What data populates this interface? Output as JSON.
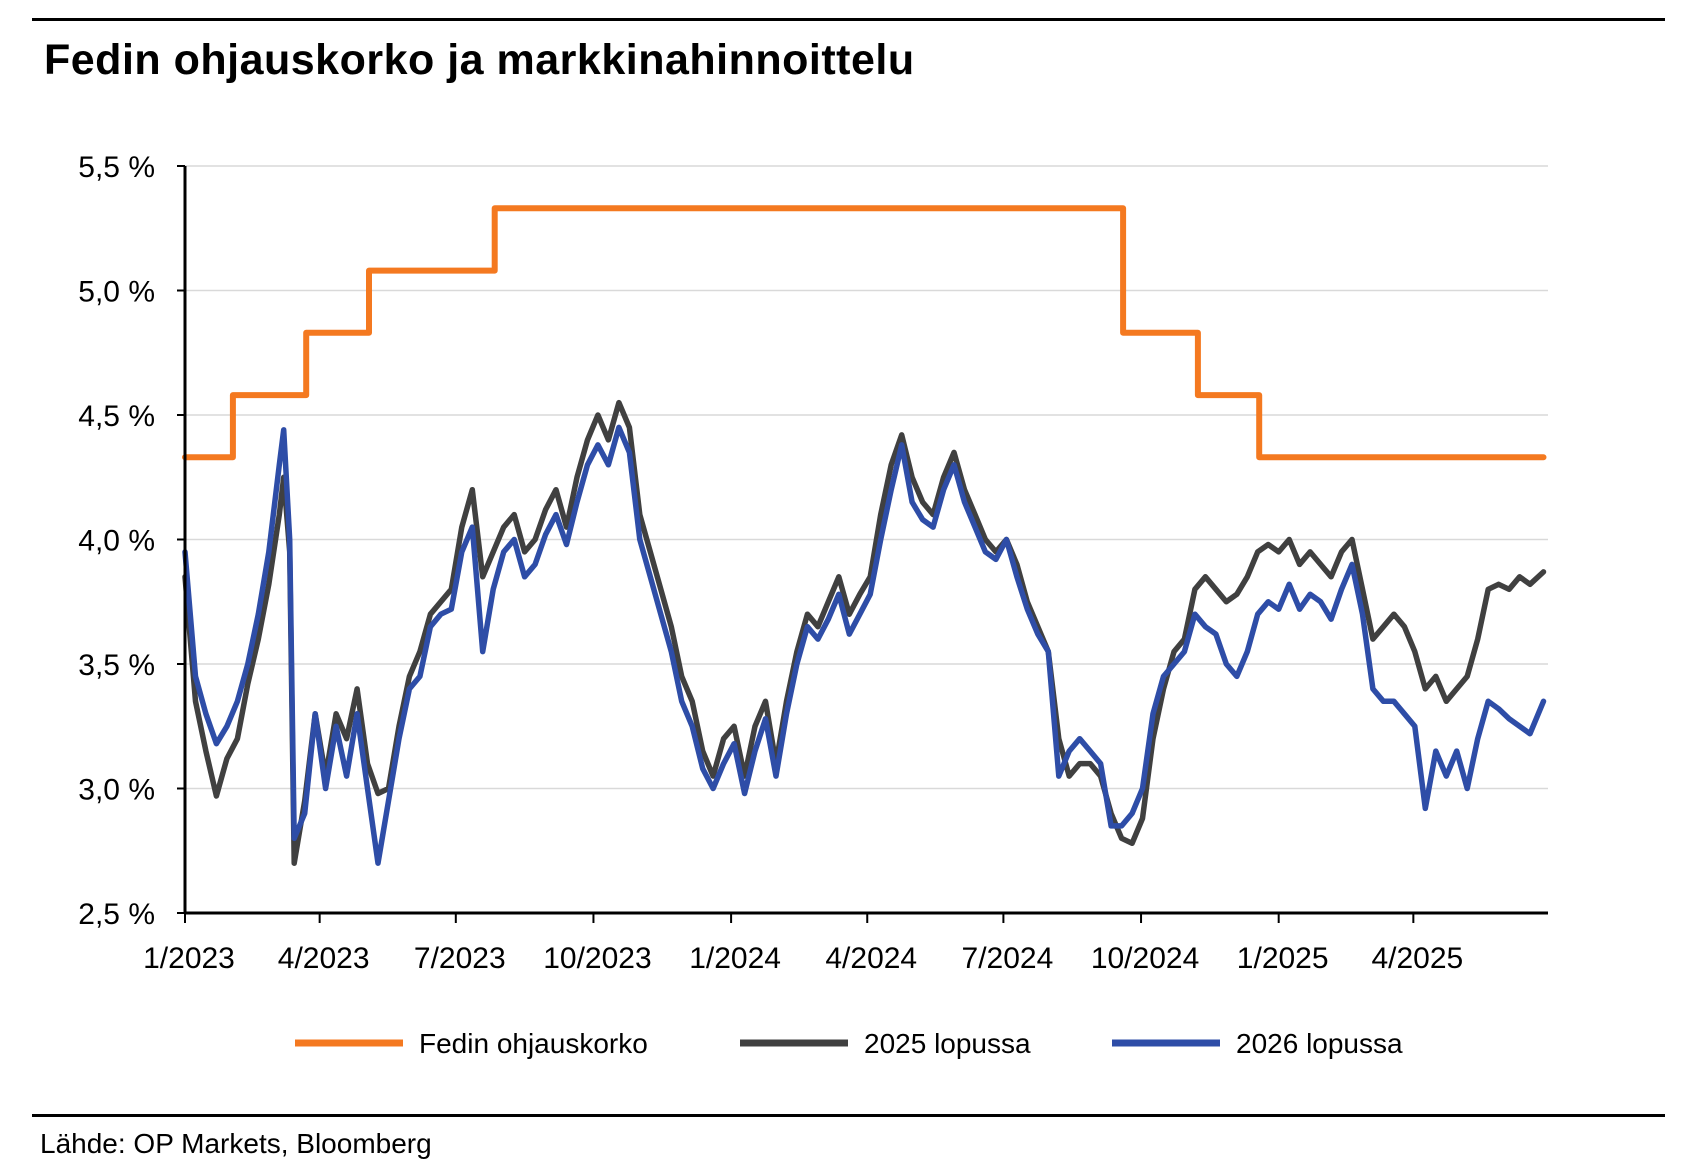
{
  "title": "Fedin ohjauskorko ja markkinahinnoittelu",
  "source": "Lähde: OP Markets, Bloomberg",
  "colors": {
    "fed": "#F47920",
    "y2025": "#404040",
    "y2026": "#2E4DA7",
    "grid": "#D9D9D9",
    "axis": "#000000"
  },
  "chart_data": {
    "type": "line",
    "title": "Fedin ohjauskorko ja markkinahinnoittelu",
    "xlabel": "",
    "ylabel": "",
    "x_unit": "date",
    "xlim": [
      "2023-01-01",
      "2025-06-30"
    ],
    "ylim": [
      2.5,
      5.5
    ],
    "y_ticks": [
      2.5,
      3.0,
      3.5,
      4.0,
      4.5,
      5.0,
      5.5
    ],
    "y_tick_labels": [
      "2,5 %",
      "3,0 %",
      "3,5 %",
      "4,0 %",
      "4,5 %",
      "5,0 %",
      "5,5 %"
    ],
    "x_ticks": [
      "2023-01-01",
      "2023-04-01",
      "2023-07-01",
      "2023-10-01",
      "2024-01-01",
      "2024-04-01",
      "2024-07-01",
      "2024-10-01",
      "2025-01-01",
      "2025-04-01"
    ],
    "x_tick_labels": [
      "1/2023",
      "4/2023",
      "7/2023",
      "10/2023",
      "1/2024",
      "4/2024",
      "7/2024",
      "10/2024",
      "1/2025",
      "4/2025"
    ],
    "grid": true,
    "legend_position": "bottom",
    "series": [
      {
        "name": "Fedin ohjauskorko",
        "style": "step",
        "points": [
          [
            "2023-01-01",
            4.33
          ],
          [
            "2023-02-02",
            4.58
          ],
          [
            "2023-03-23",
            4.83
          ],
          [
            "2023-05-04",
            5.08
          ],
          [
            "2023-07-27",
            5.33
          ],
          [
            "2024-09-19",
            4.83
          ],
          [
            "2024-11-08",
            4.58
          ],
          [
            "2024-12-19",
            4.33
          ],
          [
            "2025-06-27",
            4.33
          ]
        ]
      },
      {
        "name": "2025 lopussa",
        "style": "line",
        "points": [
          [
            "2023-01-01",
            3.85
          ],
          [
            "2023-01-08",
            3.35
          ],
          [
            "2023-01-15",
            3.15
          ],
          [
            "2023-01-22",
            2.97
          ],
          [
            "2023-01-29",
            3.12
          ],
          [
            "2023-02-05",
            3.2
          ],
          [
            "2023-02-12",
            3.42
          ],
          [
            "2023-02-19",
            3.6
          ],
          [
            "2023-02-26",
            3.82
          ],
          [
            "2023-03-05",
            4.1
          ],
          [
            "2023-03-08",
            4.25
          ],
          [
            "2023-03-12",
            3.95
          ],
          [
            "2023-03-15",
            2.7
          ],
          [
            "2023-03-22",
            2.95
          ],
          [
            "2023-03-29",
            3.3
          ],
          [
            "2023-04-05",
            3.05
          ],
          [
            "2023-04-12",
            3.3
          ],
          [
            "2023-04-19",
            3.2
          ],
          [
            "2023-04-26",
            3.4
          ],
          [
            "2023-05-03",
            3.1
          ],
          [
            "2023-05-10",
            2.98
          ],
          [
            "2023-05-17",
            3.0
          ],
          [
            "2023-05-24",
            3.25
          ],
          [
            "2023-05-31",
            3.45
          ],
          [
            "2023-06-07",
            3.55
          ],
          [
            "2023-06-14",
            3.7
          ],
          [
            "2023-06-21",
            3.75
          ],
          [
            "2023-06-28",
            3.8
          ],
          [
            "2023-07-05",
            4.05
          ],
          [
            "2023-07-12",
            4.2
          ],
          [
            "2023-07-19",
            3.85
          ],
          [
            "2023-07-26",
            3.95
          ],
          [
            "2023-08-02",
            4.05
          ],
          [
            "2023-08-09",
            4.1
          ],
          [
            "2023-08-16",
            3.95
          ],
          [
            "2023-08-23",
            4.0
          ],
          [
            "2023-08-30",
            4.12
          ],
          [
            "2023-09-06",
            4.2
          ],
          [
            "2023-09-13",
            4.05
          ],
          [
            "2023-09-20",
            4.25
          ],
          [
            "2023-09-27",
            4.4
          ],
          [
            "2023-10-04",
            4.5
          ],
          [
            "2023-10-11",
            4.4
          ],
          [
            "2023-10-18",
            4.55
          ],
          [
            "2023-10-25",
            4.45
          ],
          [
            "2023-11-01",
            4.1
          ],
          [
            "2023-11-08",
            3.95
          ],
          [
            "2023-11-15",
            3.8
          ],
          [
            "2023-11-22",
            3.65
          ],
          [
            "2023-11-29",
            3.45
          ],
          [
            "2023-12-06",
            3.35
          ],
          [
            "2023-12-13",
            3.15
          ],
          [
            "2023-12-20",
            3.05
          ],
          [
            "2023-12-27",
            3.2
          ],
          [
            "2024-01-03",
            3.25
          ],
          [
            "2024-01-10",
            3.05
          ],
          [
            "2024-01-17",
            3.25
          ],
          [
            "2024-01-24",
            3.35
          ],
          [
            "2024-01-31",
            3.1
          ],
          [
            "2024-02-07",
            3.35
          ],
          [
            "2024-02-14",
            3.55
          ],
          [
            "2024-02-21",
            3.7
          ],
          [
            "2024-02-28",
            3.65
          ],
          [
            "2024-03-06",
            3.75
          ],
          [
            "2024-03-13",
            3.85
          ],
          [
            "2024-03-20",
            3.7
          ],
          [
            "2024-03-27",
            3.78
          ],
          [
            "2024-04-03",
            3.85
          ],
          [
            "2024-04-10",
            4.1
          ],
          [
            "2024-04-17",
            4.3
          ],
          [
            "2024-04-24",
            4.42
          ],
          [
            "2024-05-01",
            4.25
          ],
          [
            "2024-05-08",
            4.15
          ],
          [
            "2024-05-15",
            4.1
          ],
          [
            "2024-05-22",
            4.25
          ],
          [
            "2024-05-29",
            4.35
          ],
          [
            "2024-06-05",
            4.2
          ],
          [
            "2024-06-12",
            4.1
          ],
          [
            "2024-06-19",
            4.0
          ],
          [
            "2024-06-26",
            3.95
          ],
          [
            "2024-07-03",
            4.0
          ],
          [
            "2024-07-10",
            3.9
          ],
          [
            "2024-07-17",
            3.75
          ],
          [
            "2024-07-24",
            3.65
          ],
          [
            "2024-07-31",
            3.55
          ],
          [
            "2024-08-07",
            3.2
          ],
          [
            "2024-08-14",
            3.05
          ],
          [
            "2024-08-21",
            3.1
          ],
          [
            "2024-08-28",
            3.1
          ],
          [
            "2024-09-04",
            3.05
          ],
          [
            "2024-09-11",
            2.9
          ],
          [
            "2024-09-18",
            2.8
          ],
          [
            "2024-09-25",
            2.78
          ],
          [
            "2024-10-02",
            2.88
          ],
          [
            "2024-10-09",
            3.2
          ],
          [
            "2024-10-16",
            3.4
          ],
          [
            "2024-10-23",
            3.55
          ],
          [
            "2024-10-30",
            3.6
          ],
          [
            "2024-11-06",
            3.8
          ],
          [
            "2024-11-13",
            3.85
          ],
          [
            "2024-11-20",
            3.8
          ],
          [
            "2024-11-27",
            3.75
          ],
          [
            "2024-12-04",
            3.78
          ],
          [
            "2024-12-11",
            3.85
          ],
          [
            "2024-12-18",
            3.95
          ],
          [
            "2024-12-25",
            3.98
          ],
          [
            "2025-01-01",
            3.95
          ],
          [
            "2025-01-08",
            4.0
          ],
          [
            "2025-01-15",
            3.9
          ],
          [
            "2025-01-22",
            3.95
          ],
          [
            "2025-01-29",
            3.9
          ],
          [
            "2025-02-05",
            3.85
          ],
          [
            "2025-02-12",
            3.95
          ],
          [
            "2025-02-19",
            4.0
          ],
          [
            "2025-02-26",
            3.8
          ],
          [
            "2025-03-05",
            3.6
          ],
          [
            "2025-03-12",
            3.65
          ],
          [
            "2025-03-19",
            3.7
          ],
          [
            "2025-03-26",
            3.65
          ],
          [
            "2025-04-02",
            3.55
          ],
          [
            "2025-04-09",
            3.4
          ],
          [
            "2025-04-16",
            3.45
          ],
          [
            "2025-04-23",
            3.35
          ],
          [
            "2025-04-30",
            3.4
          ],
          [
            "2025-05-07",
            3.45
          ],
          [
            "2025-05-14",
            3.6
          ],
          [
            "2025-05-21",
            3.8
          ],
          [
            "2025-05-28",
            3.82
          ],
          [
            "2025-06-04",
            3.8
          ],
          [
            "2025-06-11",
            3.85
          ],
          [
            "2025-06-18",
            3.82
          ],
          [
            "2025-06-27",
            3.87
          ]
        ]
      },
      {
        "name": "2026 lopussa",
        "style": "line",
        "points": [
          [
            "2023-01-01",
            3.95
          ],
          [
            "2023-01-08",
            3.45
          ],
          [
            "2023-01-15",
            3.3
          ],
          [
            "2023-01-22",
            3.18
          ],
          [
            "2023-01-29",
            3.25
          ],
          [
            "2023-02-05",
            3.35
          ],
          [
            "2023-02-12",
            3.5
          ],
          [
            "2023-02-19",
            3.7
          ],
          [
            "2023-02-26",
            3.95
          ],
          [
            "2023-03-05",
            4.3
          ],
          [
            "2023-03-08",
            4.44
          ],
          [
            "2023-03-12",
            4.0
          ],
          [
            "2023-03-15",
            2.8
          ],
          [
            "2023-03-22",
            2.9
          ],
          [
            "2023-03-29",
            3.3
          ],
          [
            "2023-04-05",
            3.0
          ],
          [
            "2023-04-12",
            3.25
          ],
          [
            "2023-04-19",
            3.05
          ],
          [
            "2023-04-26",
            3.3
          ],
          [
            "2023-05-03",
            3.0
          ],
          [
            "2023-05-10",
            2.7
          ],
          [
            "2023-05-17",
            2.95
          ],
          [
            "2023-05-24",
            3.2
          ],
          [
            "2023-05-31",
            3.4
          ],
          [
            "2023-06-07",
            3.45
          ],
          [
            "2023-06-14",
            3.65
          ],
          [
            "2023-06-21",
            3.7
          ],
          [
            "2023-06-28",
            3.72
          ],
          [
            "2023-07-05",
            3.95
          ],
          [
            "2023-07-12",
            4.05
          ],
          [
            "2023-07-19",
            3.55
          ],
          [
            "2023-07-26",
            3.8
          ],
          [
            "2023-08-02",
            3.95
          ],
          [
            "2023-08-09",
            4.0
          ],
          [
            "2023-08-16",
            3.85
          ],
          [
            "2023-08-23",
            3.9
          ],
          [
            "2023-08-30",
            4.02
          ],
          [
            "2023-09-06",
            4.1
          ],
          [
            "2023-09-13",
            3.98
          ],
          [
            "2023-09-20",
            4.15
          ],
          [
            "2023-09-27",
            4.3
          ],
          [
            "2023-10-04",
            4.38
          ],
          [
            "2023-10-11",
            4.3
          ],
          [
            "2023-10-18",
            4.45
          ],
          [
            "2023-10-25",
            4.35
          ],
          [
            "2023-11-01",
            4.0
          ],
          [
            "2023-11-08",
            3.85
          ],
          [
            "2023-11-15",
            3.7
          ],
          [
            "2023-11-22",
            3.55
          ],
          [
            "2023-11-29",
            3.35
          ],
          [
            "2023-12-06",
            3.25
          ],
          [
            "2023-12-13",
            3.08
          ],
          [
            "2023-12-20",
            3.0
          ],
          [
            "2023-12-27",
            3.1
          ],
          [
            "2024-01-03",
            3.18
          ],
          [
            "2024-01-10",
            2.98
          ],
          [
            "2024-01-17",
            3.15
          ],
          [
            "2024-01-24",
            3.28
          ],
          [
            "2024-01-31",
            3.05
          ],
          [
            "2024-02-07",
            3.3
          ],
          [
            "2024-02-14",
            3.5
          ],
          [
            "2024-02-21",
            3.65
          ],
          [
            "2024-02-28",
            3.6
          ],
          [
            "2024-03-06",
            3.68
          ],
          [
            "2024-03-13",
            3.78
          ],
          [
            "2024-03-20",
            3.62
          ],
          [
            "2024-03-27",
            3.7
          ],
          [
            "2024-04-03",
            3.78
          ],
          [
            "2024-04-10",
            4.0
          ],
          [
            "2024-04-17",
            4.2
          ],
          [
            "2024-04-24",
            4.38
          ],
          [
            "2024-05-01",
            4.15
          ],
          [
            "2024-05-08",
            4.08
          ],
          [
            "2024-05-15",
            4.05
          ],
          [
            "2024-05-22",
            4.2
          ],
          [
            "2024-05-29",
            4.3
          ],
          [
            "2024-06-05",
            4.15
          ],
          [
            "2024-06-12",
            4.05
          ],
          [
            "2024-06-19",
            3.95
          ],
          [
            "2024-06-26",
            3.92
          ],
          [
            "2024-07-03",
            4.0
          ],
          [
            "2024-07-10",
            3.85
          ],
          [
            "2024-07-17",
            3.72
          ],
          [
            "2024-07-24",
            3.62
          ],
          [
            "2024-07-31",
            3.55
          ],
          [
            "2024-08-07",
            3.05
          ],
          [
            "2024-08-14",
            3.15
          ],
          [
            "2024-08-21",
            3.2
          ],
          [
            "2024-08-28",
            3.15
          ],
          [
            "2024-09-04",
            3.1
          ],
          [
            "2024-09-11",
            2.85
          ],
          [
            "2024-09-18",
            2.85
          ],
          [
            "2024-09-25",
            2.9
          ],
          [
            "2024-10-02",
            3.0
          ],
          [
            "2024-10-09",
            3.3
          ],
          [
            "2024-10-16",
            3.45
          ],
          [
            "2024-10-23",
            3.5
          ],
          [
            "2024-10-30",
            3.55
          ],
          [
            "2024-11-06",
            3.7
          ],
          [
            "2024-11-13",
            3.65
          ],
          [
            "2024-11-20",
            3.62
          ],
          [
            "2024-11-27",
            3.5
          ],
          [
            "2024-12-04",
            3.45
          ],
          [
            "2024-12-11",
            3.55
          ],
          [
            "2024-12-18",
            3.7
          ],
          [
            "2024-12-25",
            3.75
          ],
          [
            "2025-01-01",
            3.72
          ],
          [
            "2025-01-08",
            3.82
          ],
          [
            "2025-01-15",
            3.72
          ],
          [
            "2025-01-22",
            3.78
          ],
          [
            "2025-01-29",
            3.75
          ],
          [
            "2025-02-05",
            3.68
          ],
          [
            "2025-02-12",
            3.8
          ],
          [
            "2025-02-19",
            3.9
          ],
          [
            "2025-02-26",
            3.7
          ],
          [
            "2025-03-05",
            3.4
          ],
          [
            "2025-03-12",
            3.35
          ],
          [
            "2025-03-19",
            3.35
          ],
          [
            "2025-03-26",
            3.3
          ],
          [
            "2025-04-02",
            3.25
          ],
          [
            "2025-04-09",
            2.92
          ],
          [
            "2025-04-16",
            3.15
          ],
          [
            "2025-04-23",
            3.05
          ],
          [
            "2025-04-30",
            3.15
          ],
          [
            "2025-05-07",
            3.0
          ],
          [
            "2025-05-14",
            3.2
          ],
          [
            "2025-05-21",
            3.35
          ],
          [
            "2025-05-28",
            3.32
          ],
          [
            "2025-06-04",
            3.28
          ],
          [
            "2025-06-11",
            3.25
          ],
          [
            "2025-06-18",
            3.22
          ],
          [
            "2025-06-27",
            3.35
          ]
        ]
      }
    ]
  }
}
